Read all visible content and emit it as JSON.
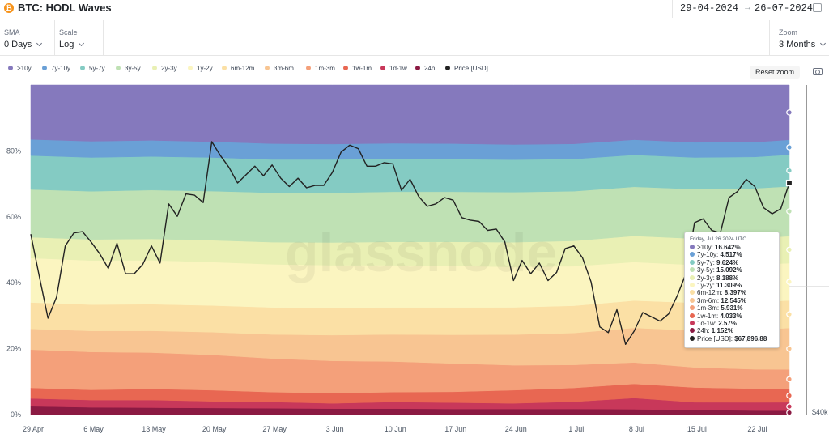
{
  "header": {
    "title": "BTC: HODL Waves",
    "coin_glyph": "₿",
    "date_from": "29-04-2024",
    "date_arrow": "→",
    "date_to": "26-07-2024"
  },
  "controls": {
    "sma": {
      "label": "SMA",
      "value": "0 Days"
    },
    "scale": {
      "label": "Scale",
      "value": "Log"
    },
    "zoom": {
      "label": "Zoom",
      "value": "3 Months"
    }
  },
  "reset_label": "Reset zoom",
  "watermark": "glassnode",
  "chart_data": {
    "type": "area",
    "title": "BTC: HODL Waves",
    "xlabel": "",
    "ylabel": "",
    "stacking": "percent",
    "ylim": [
      0,
      100
    ],
    "yticks": [
      "0%",
      "20%",
      "40%",
      "60%",
      "80%"
    ],
    "y2_label": "$40k",
    "grid": false,
    "legend_position": "top",
    "x_ticks": [
      "29 Apr",
      "6 May",
      "13 May",
      "20 May",
      "27 May",
      "3 Jun",
      "10 Jun",
      "17 Jun",
      "24 Jun",
      "1 Jul",
      "8 Jul",
      "15 Jul",
      "22 Jul"
    ],
    "x": [
      "2024-04-29",
      "2024-05-06",
      "2024-05-13",
      "2024-05-20",
      "2024-05-27",
      "2024-06-03",
      "2024-06-10",
      "2024-06-17",
      "2024-06-24",
      "2024-07-01",
      "2024-07-08",
      "2024-07-15",
      "2024-07-22",
      "2024-07-26"
    ],
    "series": [
      {
        "name": "24h",
        "color": "#8b1a43",
        "values": [
          2.5,
          2.2,
          2.1,
          2.0,
          1.9,
          1.8,
          1.8,
          1.7,
          1.7,
          1.7,
          1.6,
          1.4,
          1.2,
          1.152
        ]
      },
      {
        "name": "1d-1w",
        "color": "#c8385a",
        "values": [
          2.4,
          2.2,
          2.3,
          2.0,
          1.9,
          1.6,
          2.0,
          1.9,
          1.7,
          2.2,
          3.4,
          2.3,
          2.5,
          2.57
        ]
      },
      {
        "name": "1w-1m",
        "color": "#e86752",
        "values": [
          3.2,
          3.1,
          3.4,
          3.4,
          3.0,
          3.1,
          3.0,
          3.3,
          4.0,
          4.2,
          4.3,
          4.5,
          4.2,
          4.033
        ]
      },
      {
        "name": "1m-3m",
        "color": "#f4a07a",
        "values": [
          11.6,
          11.5,
          11.0,
          10.7,
          10.2,
          9.8,
          9.3,
          8.6,
          7.6,
          7.0,
          6.5,
          6.1,
          5.9,
          5.931
        ]
      },
      {
        "name": "3m-6m",
        "color": "#f8c592",
        "values": [
          6.3,
          6.4,
          6.6,
          6.9,
          7.3,
          7.8,
          8.2,
          8.7,
          9.3,
          9.7,
          10.5,
          11.2,
          12.1,
          12.545
        ]
      },
      {
        "name": "6m-12m",
        "color": "#fbe0a5",
        "values": [
          8.0,
          8.0,
          8.1,
          8.1,
          8.2,
          8.2,
          8.2,
          8.3,
          8.3,
          8.3,
          8.3,
          8.4,
          8.4,
          8.397
        ]
      },
      {
        "name": "1y-2y",
        "color": "#fbf5c0",
        "values": [
          13.5,
          13.4,
          13.3,
          13.2,
          13.1,
          13.0,
          12.8,
          12.6,
          12.3,
          12.0,
          11.7,
          11.5,
          11.35,
          11.309
        ]
      },
      {
        "name": "2y-3y",
        "color": "#e9f0b4",
        "values": [
          6.3,
          6.4,
          6.5,
          6.6,
          6.7,
          6.9,
          7.1,
          7.3,
          7.5,
          7.7,
          7.9,
          8.0,
          8.15,
          8.188
        ]
      },
      {
        "name": "3y-5y",
        "color": "#bfe1b4",
        "values": [
          14.5,
          14.6,
          14.8,
          14.9,
          15.0,
          15.1,
          15.2,
          15.2,
          15.2,
          15.1,
          14.9,
          15.0,
          15.1,
          15.092
        ]
      },
      {
        "name": "5y-7y",
        "color": "#84cbc3",
        "values": [
          10.3,
          10.3,
          10.2,
          10.2,
          10.1,
          10.1,
          10.0,
          9.9,
          9.9,
          9.8,
          9.7,
          9.6,
          9.6,
          9.624
        ]
      },
      {
        "name": "7y-10y",
        "color": "#6aa0d6",
        "values": [
          4.9,
          4.9,
          4.9,
          4.8,
          4.8,
          4.7,
          4.7,
          4.7,
          4.6,
          4.6,
          4.6,
          4.6,
          4.5,
          4.517
        ]
      },
      {
        "name": ">10y",
        "color": "#8579bd",
        "values": [
          16.5,
          17.1,
          16.8,
          17.2,
          17.8,
          17.9,
          17.7,
          17.8,
          18.1,
          17.9,
          16.6,
          17.4,
          17.4,
          16.642
        ]
      }
    ],
    "price_series": {
      "name": "Price [USD]",
      "color": "#222222",
      "x": [
        "2024-04-29",
        "2024-04-30",
        "2024-05-01",
        "2024-05-02",
        "2024-05-03",
        "2024-05-04",
        "2024-05-05",
        "2024-05-06",
        "2024-05-07",
        "2024-05-08",
        "2024-05-09",
        "2024-05-10",
        "2024-05-11",
        "2024-05-12",
        "2024-05-13",
        "2024-05-14",
        "2024-05-15",
        "2024-05-16",
        "2024-05-17",
        "2024-05-18",
        "2024-05-19",
        "2024-05-20",
        "2024-05-21",
        "2024-05-22",
        "2024-05-23",
        "2024-05-24",
        "2024-05-25",
        "2024-05-26",
        "2024-05-27",
        "2024-05-28",
        "2024-05-29",
        "2024-05-30",
        "2024-05-31",
        "2024-06-01",
        "2024-06-02",
        "2024-06-03",
        "2024-06-04",
        "2024-06-05",
        "2024-06-06",
        "2024-06-07",
        "2024-06-08",
        "2024-06-09",
        "2024-06-10",
        "2024-06-11",
        "2024-06-12",
        "2024-06-13",
        "2024-06-14",
        "2024-06-15",
        "2024-06-16",
        "2024-06-17",
        "2024-06-18",
        "2024-06-19",
        "2024-06-20",
        "2024-06-21",
        "2024-06-22",
        "2024-06-23",
        "2024-06-24",
        "2024-06-25",
        "2024-06-26",
        "2024-06-27",
        "2024-06-28",
        "2024-06-29",
        "2024-06-30",
        "2024-07-01",
        "2024-07-02",
        "2024-07-03",
        "2024-07-04",
        "2024-07-05",
        "2024-07-06",
        "2024-07-07",
        "2024-07-08",
        "2024-07-09",
        "2024-07-10",
        "2024-07-11",
        "2024-07-12",
        "2024-07-13",
        "2024-07-14",
        "2024-07-15",
        "2024-07-16",
        "2024-07-17",
        "2024-07-18",
        "2024-07-19",
        "2024-07-20",
        "2024-07-21",
        "2024-07-22",
        "2024-07-23",
        "2024-07-24",
        "2024-07-25",
        "2024-07-26"
      ],
      "values": [
        63800,
        60600,
        57600,
        59100,
        62900,
        63900,
        64000,
        63200,
        62300,
        61200,
        63100,
        60800,
        60800,
        61500,
        62900,
        61600,
        66200,
        65200,
        67000,
        66900,
        66300,
        71400,
        70200,
        69200,
        67900,
        68600,
        69300,
        68500,
        69400,
        68300,
        67600,
        68300,
        67500,
        67700,
        67700,
        68800,
        70500,
        71100,
        70800,
        69300,
        69300,
        69600,
        69500,
        67300,
        68200,
        66800,
        66000,
        66200,
        66700,
        66500,
        65100,
        64900,
        64800,
        64100,
        64200,
        63200,
        60300,
        61800,
        60800,
        61600,
        60300,
        60900,
        62700,
        62900,
        62000,
        60200,
        57000,
        56600,
        58200,
        55800,
        56700,
        58000,
        57700,
        57400,
        57900,
        59200,
        60800,
        64700,
        65000,
        64100,
        63900,
        66700,
        67200,
        68200,
        67600,
        65900,
        65400,
        65800,
        67897
      ]
    },
    "tooltip": {
      "date": "Friday, Jul 26 2024 UTC",
      "rows": [
        {
          "name": ">10y",
          "value": "16.642%",
          "color": "#8579bd"
        },
        {
          "name": "7y-10y",
          "value": "4.517%",
          "color": "#6aa0d6"
        },
        {
          "name": "5y-7y",
          "value": "9.624%",
          "color": "#84cbc3"
        },
        {
          "name": "3y-5y",
          "value": "15.092%",
          "color": "#bfe1b4"
        },
        {
          "name": "2y-3y",
          "value": "8.188%",
          "color": "#e9f0b4"
        },
        {
          "name": "1y-2y",
          "value": "11.309%",
          "color": "#fbf5c0"
        },
        {
          "name": "6m-12m",
          "value": "8.397%",
          "color": "#fbe0a5"
        },
        {
          "name": "3m-6m",
          "value": "12.545%",
          "color": "#f8c592"
        },
        {
          "name": "1m-3m",
          "value": "5.931%",
          "color": "#f4a07a"
        },
        {
          "name": "1w-1m",
          "value": "4.033%",
          "color": "#e86752"
        },
        {
          "name": "1d-1w",
          "value": "2.57%",
          "color": "#c8385a"
        },
        {
          "name": "24h",
          "value": "1.152%",
          "color": "#8b1a43"
        },
        {
          "name": "Price [USD]",
          "value": "$67,896.88",
          "color": "#222222"
        }
      ]
    }
  },
  "legend": [
    {
      "name": ">10y",
      "color": "#8579bd"
    },
    {
      "name": "7y-10y",
      "color": "#6aa0d6"
    },
    {
      "name": "5y-7y",
      "color": "#84cbc3"
    },
    {
      "name": "3y-5y",
      "color": "#bfe1b4"
    },
    {
      "name": "2y-3y",
      "color": "#e9f0b4"
    },
    {
      "name": "1y-2y",
      "color": "#fbf5c0"
    },
    {
      "name": "6m-12m",
      "color": "#fbe0a5"
    },
    {
      "name": "3m-6m",
      "color": "#f8c592"
    },
    {
      "name": "1m-3m",
      "color": "#f4a07a"
    },
    {
      "name": "1w-1m",
      "color": "#e86752"
    },
    {
      "name": "1d-1w",
      "color": "#c8385a"
    },
    {
      "name": "24h",
      "color": "#8b1a43"
    },
    {
      "name": "Price [USD]",
      "color": "#222222"
    }
  ],
  "icons": {
    "coin": "bitcoin-icon",
    "calendar": "calendar-icon",
    "camera": "camera-icon",
    "chevron": "chevron-down-icon"
  }
}
